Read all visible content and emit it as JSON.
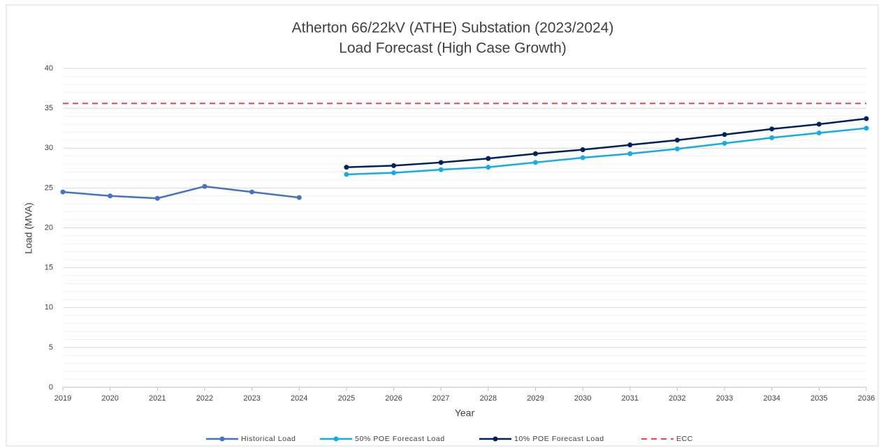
{
  "chart_data": {
    "type": "line",
    "title": [
      "Atherton 66/22kV (ATHE) Substation (2023/2024)",
      "Load Forecast (High Case Growth)"
    ],
    "xlabel": "Year",
    "ylabel": "Load (MVA)",
    "x": [
      2019,
      2020,
      2021,
      2022,
      2023,
      2024,
      2025,
      2026,
      2027,
      2028,
      2029,
      2030,
      2031,
      2032,
      2033,
      2034,
      2035,
      2036
    ],
    "xlim": [
      2019,
      2036
    ],
    "xticks": [
      2019,
      2020,
      2021,
      2022,
      2023,
      2024,
      2025,
      2026,
      2027,
      2028,
      2029,
      2030,
      2031,
      2032,
      2033,
      2034,
      2035,
      2036
    ],
    "ylim": [
      0,
      40
    ],
    "yticks": [
      0,
      5,
      10,
      15,
      20,
      25,
      30,
      35,
      40
    ],
    "yminorticks": [
      1,
      2,
      3,
      4,
      6,
      7,
      8,
      9,
      11,
      12,
      13,
      14,
      16,
      17,
      18,
      19,
      21,
      22,
      23,
      24,
      26,
      27,
      28,
      29,
      31,
      32,
      33,
      34,
      36,
      37,
      38,
      39
    ],
    "grid": true,
    "legend": "bottom",
    "series": [
      {
        "name": "Historical Load",
        "color": "#4472c4",
        "marker": true,
        "dashed": false,
        "values": [
          24.5,
          24.0,
          23.7,
          25.2,
          24.5,
          23.8,
          null,
          null,
          null,
          null,
          null,
          null,
          null,
          null,
          null,
          null,
          null,
          null
        ]
      },
      {
        "name": "50% POE Forecast Load",
        "color": "#13ace8",
        "marker": true,
        "dashed": false,
        "values": [
          null,
          null,
          null,
          null,
          null,
          null,
          26.7,
          26.9,
          27.3,
          27.6,
          28.2,
          28.8,
          29.3,
          29.9,
          30.6,
          31.3,
          31.9,
          32.5
        ]
      },
      {
        "name": "10% POE Forecast Load",
        "color": "#002060",
        "marker": true,
        "dashed": false,
        "values": [
          null,
          null,
          null,
          null,
          null,
          null,
          27.6,
          27.8,
          28.2,
          28.7,
          29.3,
          29.8,
          30.4,
          31.0,
          31.7,
          32.4,
          33.0,
          33.7
        ]
      },
      {
        "name": "ECC",
        "color": "#f04848",
        "marker": false,
        "dashed": true,
        "values": [
          35.6,
          35.6,
          35.6,
          35.6,
          35.6,
          35.6,
          35.6,
          35.6,
          35.6,
          35.6,
          35.6,
          35.6,
          35.6,
          35.6,
          35.6,
          35.6,
          35.6,
          35.6
        ]
      }
    ]
  }
}
